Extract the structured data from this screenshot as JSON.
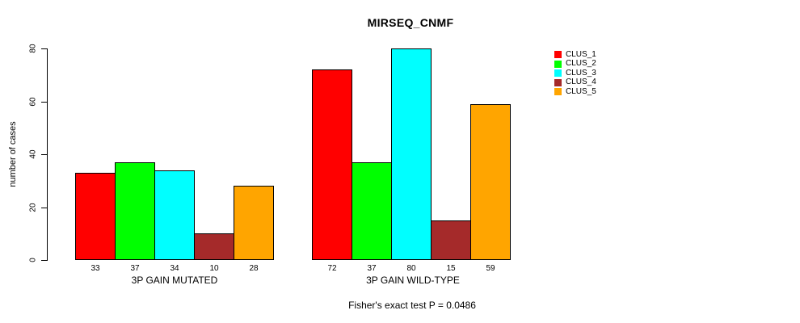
{
  "title": "MIRSEQ_CNMF",
  "footer": "Fisher's exact test P = 0.0486",
  "chart_data": {
    "type": "bar",
    "title": "MIRSEQ_CNMF",
    "ylabel": "number of cases",
    "ylim": [
      0,
      80
    ],
    "yticks": [
      0,
      20,
      40,
      60,
      80
    ],
    "grid": false,
    "legend_position": "right",
    "series_colors": [
      "#FF0000",
      "#00FF00",
      "#00FFFF",
      "#A52A2A",
      "#FFA500"
    ],
    "legend": [
      {
        "label": "CLUS_1",
        "color": "#FF0000"
      },
      {
        "label": "CLUS_2",
        "color": "#00FF00"
      },
      {
        "label": "CLUS_3",
        "color": "#00FFFF"
      },
      {
        "label": "CLUS_4",
        "color": "#A52A2A"
      },
      {
        "label": "CLUS_5",
        "color": "#FFA500"
      }
    ],
    "groups": [
      {
        "label": "3P GAIN MUTATED",
        "values": [
          33,
          37,
          34,
          10,
          28
        ]
      },
      {
        "label": "3P GAIN WILD-TYPE",
        "values": [
          72,
          37,
          80,
          15,
          59
        ]
      }
    ],
    "annotation": "Fisher's exact test P = 0.0486"
  }
}
